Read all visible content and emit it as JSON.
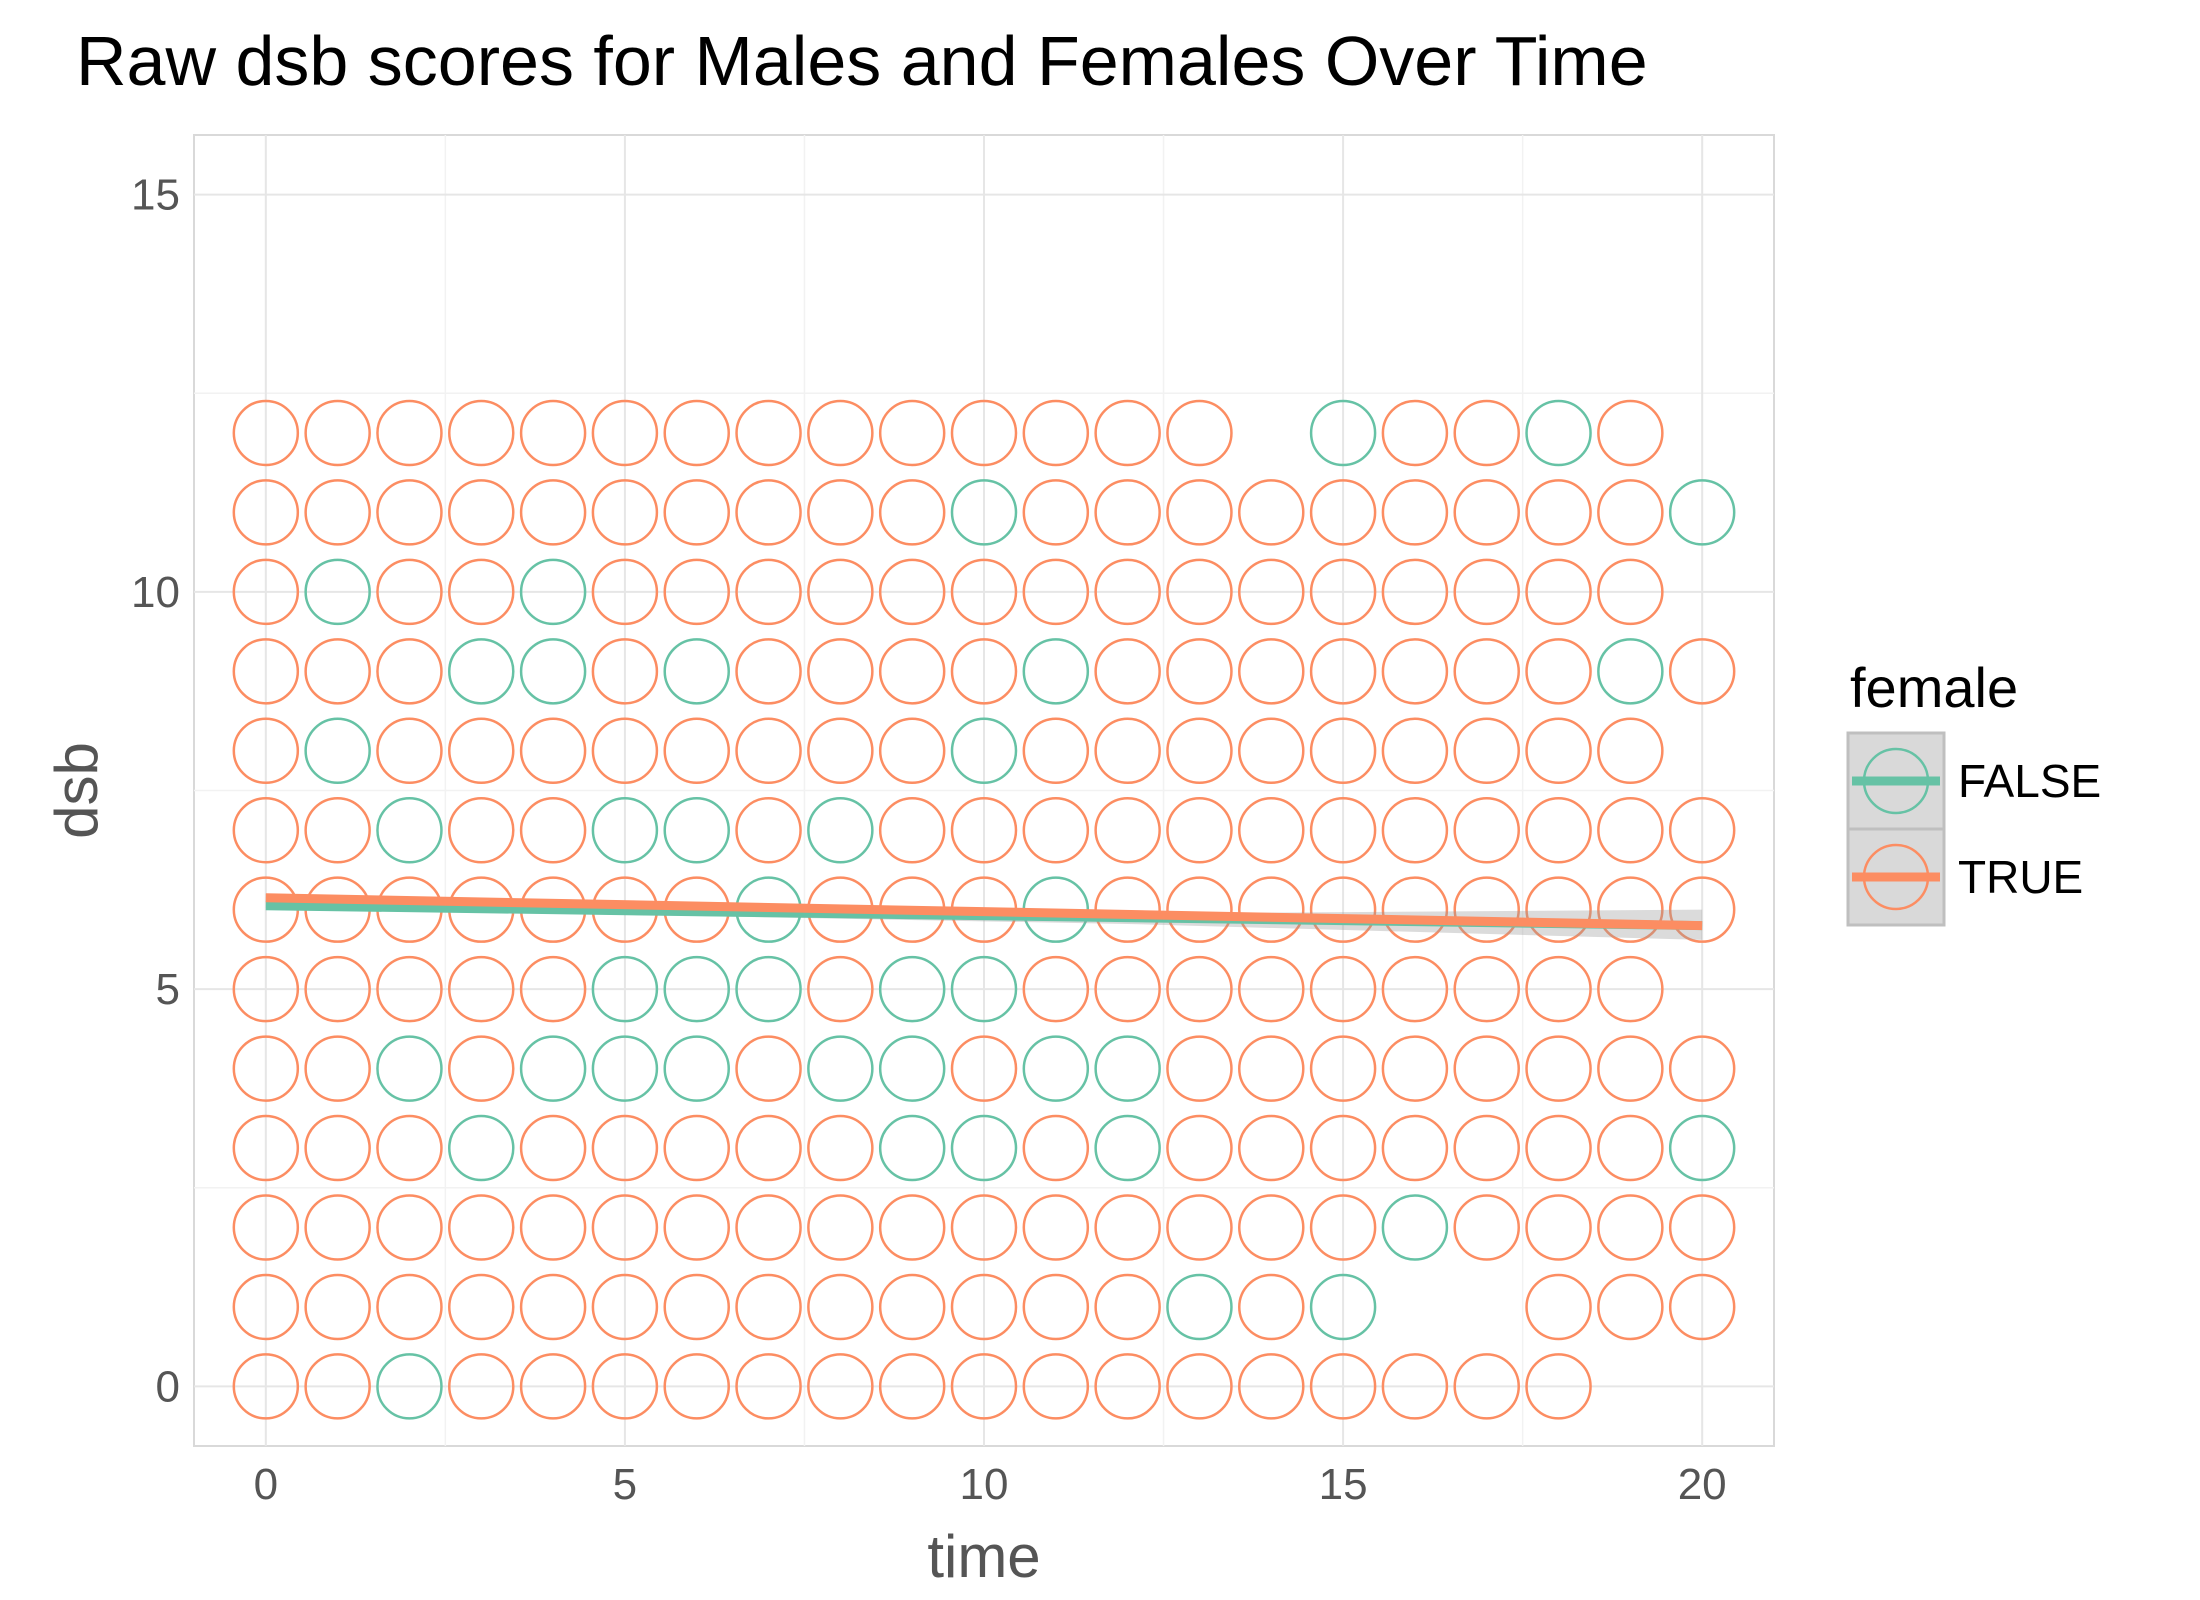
{
  "chart_data": {
    "type": "scatter",
    "title": "Raw dsb scores for Males and Females Over Time",
    "xlabel": "time",
    "ylabel": "dsb",
    "xlim": [
      -1,
      21
    ],
    "ylim": [
      -0.75,
      15.75
    ],
    "x_ticks": [
      0,
      5,
      10,
      15,
      20
    ],
    "y_ticks": [
      0,
      5,
      10,
      15
    ],
    "grid": true,
    "legend": {
      "title": "female",
      "position": "right"
    },
    "series": [
      {
        "name": "FALSE",
        "color": "#66c2a5",
        "points": [
          [
            2,
            0
          ],
          [
            13,
            1
          ],
          [
            15,
            1
          ],
          [
            16,
            2
          ],
          [
            3,
            3
          ],
          [
            9,
            3
          ],
          [
            10,
            3
          ],
          [
            12,
            3
          ],
          [
            20,
            3
          ],
          [
            2,
            4
          ],
          [
            4,
            4
          ],
          [
            5,
            4
          ],
          [
            6,
            4
          ],
          [
            8,
            4
          ],
          [
            9,
            4
          ],
          [
            11,
            4
          ],
          [
            12,
            4
          ],
          [
            5,
            5
          ],
          [
            6,
            5
          ],
          [
            7,
            5
          ],
          [
            9,
            5
          ],
          [
            10,
            5
          ],
          [
            7,
            6
          ],
          [
            11,
            6
          ],
          [
            2,
            7
          ],
          [
            5,
            7
          ],
          [
            6,
            7
          ],
          [
            8,
            7
          ],
          [
            1,
            8
          ],
          [
            10,
            8
          ],
          [
            3,
            9
          ],
          [
            4,
            9
          ],
          [
            6,
            9
          ],
          [
            11,
            9
          ],
          [
            19,
            9
          ],
          [
            1,
            10
          ],
          [
            4,
            10
          ],
          [
            10,
            11
          ],
          [
            20,
            11
          ],
          [
            15,
            12
          ],
          [
            18,
            12
          ]
        ],
        "trend": {
          "from": [
            0,
            6.05
          ],
          "to": [
            20,
            5.8
          ]
        }
      },
      {
        "name": "TRUE",
        "color": "#fc8d62",
        "grid_points": {
          "0": [
            0,
            1,
            3,
            4,
            5,
            6,
            7,
            8,
            9,
            10,
            11,
            12,
            13,
            14,
            15,
            16,
            17,
            18
          ],
          "1": [
            0,
            1,
            2,
            3,
            4,
            5,
            6,
            7,
            8,
            9,
            10,
            11,
            12,
            14,
            18,
            19,
            20
          ],
          "2": [
            0,
            1,
            2,
            3,
            4,
            5,
            6,
            7,
            8,
            9,
            10,
            11,
            12,
            13,
            14,
            15,
            17,
            18,
            19,
            20
          ],
          "3": [
            0,
            1,
            2,
            4,
            5,
            6,
            7,
            8,
            11,
            13,
            14,
            15,
            16,
            17,
            18,
            19
          ],
          "4": [
            0,
            1,
            3,
            7,
            10,
            13,
            14,
            15,
            16,
            17,
            18,
            19,
            20
          ],
          "5": [
            0,
            1,
            2,
            3,
            4,
            8,
            11,
            12,
            13,
            14,
            15,
            16,
            17,
            18,
            19
          ],
          "6": [
            0,
            1,
            2,
            3,
            4,
            5,
            6,
            8,
            9,
            10,
            12,
            13,
            14,
            15,
            16,
            17,
            18,
            19,
            20
          ],
          "7": [
            0,
            1,
            3,
            4,
            7,
            9,
            10,
            11,
            12,
            13,
            14,
            15,
            16,
            17,
            18,
            19,
            20
          ],
          "8": [
            0,
            2,
            3,
            4,
            5,
            6,
            7,
            8,
            9,
            11,
            12,
            13,
            14,
            15,
            16,
            17,
            18,
            19
          ],
          "9": [
            0,
            1,
            2,
            5,
            7,
            8,
            9,
            10,
            12,
            13,
            14,
            15,
            16,
            17,
            18,
            20
          ],
          "10": [
            0,
            2,
            3,
            5,
            6,
            7,
            8,
            9,
            10,
            11,
            12,
            13,
            14,
            15,
            16,
            17,
            18,
            19
          ],
          "11": [
            0,
            1,
            2,
            3,
            4,
            5,
            6,
            7,
            8,
            9,
            11,
            12,
            13,
            14,
            15,
            16,
            17,
            18,
            19
          ],
          "12": [
            0,
            1,
            2,
            3,
            4,
            5,
            6,
            7,
            8,
            9,
            10,
            11,
            12,
            13,
            16,
            17,
            19
          ]
        },
        "trend": {
          "from": [
            0,
            6.15
          ],
          "to": [
            20,
            5.8
          ]
        }
      }
    ]
  }
}
